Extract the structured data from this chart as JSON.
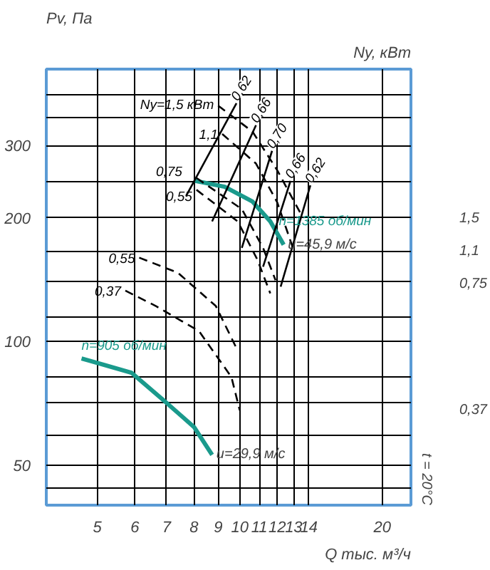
{
  "chart_data": {
    "type": "line",
    "xlabel": "Q тыс. м³/ч",
    "ylabel": "Pv, Па",
    "y2label": "Ny, кВт",
    "log": "xy",
    "grid": true,
    "legend": false,
    "marker": "none",
    "xlim": [
      3.9,
      23
    ],
    "ylim": [
      40,
      460
    ],
    "xticks": [
      5,
      6,
      7,
      8,
      9,
      10,
      11,
      12,
      13,
      14,
      20
    ],
    "yticks": [
      {
        "value": 44,
        "label": null
      },
      50,
      {
        "value": 59,
        "label": null
      },
      {
        "value": 71,
        "label": null
      },
      {
        "value": 82,
        "label": null
      },
      100,
      {
        "value": 115,
        "label": null
      },
      {
        "value": 140,
        "label": null
      },
      {
        "value": 165,
        "label": null
      },
      200,
      {
        "value": 245,
        "label": null
      },
      300,
      {
        "value": 350,
        "label": null
      },
      {
        "value": 400,
        "label": null
      }
    ],
    "series": [
      {
        "name": "n=1385 об/мин",
        "color": "#1a9a8c",
        "x": [
          8.05,
          9.29,
          10.64,
          11.6,
          12.38
        ],
        "values": [
          246,
          238,
          219,
          196,
          172
        ],
        "line_style": "solid"
      },
      {
        "name": "n=905 об/мин",
        "color": "#1a9a8c",
        "x": [
          4.63,
          5.9,
          6.9,
          8.0,
          8.74
        ],
        "values": [
          91,
          84,
          72,
          62,
          53
        ],
        "line_style": "solid"
      },
      {
        "name": "Ny=1,5 кВт",
        "color": "#000000",
        "x": [
          9.0,
          10.64,
          12.0,
          13.41
        ],
        "values": [
          375,
          324,
          261,
          206
        ],
        "line_style": "dashed"
      },
      {
        "name": "1,1",
        "color": "#000000",
        "x": [
          9.18,
          10.82,
          12.0,
          12.95
        ],
        "values": [
          320,
          271,
          218,
          169
        ],
        "line_style": "dashed"
      },
      {
        "name": "0,75",
        "color": "#000000",
        "x": [
          8.1,
          10.1,
          11.2,
          11.9
        ],
        "values": [
          250,
          210,
          169,
          141
        ],
        "line_style": "dashed"
      },
      {
        "name": "0,55",
        "color": "#000000",
        "x": [
          8.1,
          9.9,
          10.9,
          11.6
        ],
        "values": [
          234,
          196,
          158,
          131
        ],
        "line_style": "dashed"
      },
      {
        "name": "0,55",
        "color": "#000000",
        "x": [
          6.13,
          7.4,
          8.9,
          9.9
        ],
        "values": [
          160,
          147,
          122,
          95
        ],
        "line_style": "dashed"
      },
      {
        "name": "0,37",
        "color": "#000000",
        "x": [
          5.73,
          6.65,
          8.2,
          9.6,
          10.0
        ],
        "values": [
          133,
          122,
          106,
          82,
          68
        ],
        "line_style": "dashed"
      },
      {
        "name": "0,62",
        "color": "#000000",
        "x": [
          9.84,
          7.7
        ],
        "values": [
          380,
          226
        ],
        "line_style": "solid"
      },
      {
        "name": "0,66",
        "color": "#000000",
        "x": [
          10.82,
          8.74
        ],
        "values": [
          336,
          196
        ],
        "line_style": "solid"
      },
      {
        "name": "0,70",
        "color": "#000000",
        "x": [
          11.7,
          10.1
        ],
        "values": [
          291,
          169
        ],
        "line_style": "solid"
      },
      {
        "name": "0,66",
        "color": "#000000",
        "x": [
          12.8,
          11.2
        ],
        "values": [
          246,
          152
        ],
        "line_style": "solid"
      },
      {
        "name": "0,62",
        "color": "#000000",
        "x": [
          14.1,
          12.2
        ],
        "values": [
          240,
          136
        ],
        "line_style": "solid"
      }
    ],
    "annotations": [
      {
        "text": "u=45,9 м/с",
        "x": 12.38,
        "y": 172
      },
      {
        "text": "u=29,9 м/с",
        "x": 8.74,
        "y": 53
      },
      "1,5",
      "1,1",
      "0,75",
      "0,37",
      "t = 20°C"
    ]
  }
}
